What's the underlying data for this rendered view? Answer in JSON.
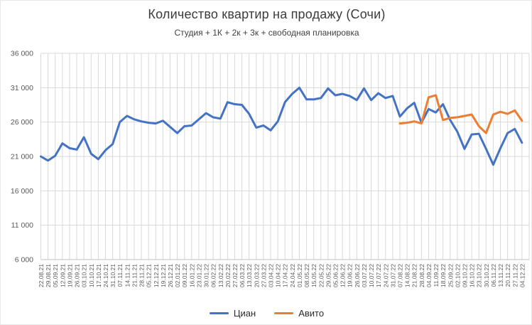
{
  "chart": {
    "title": "Количество квартир на продажу (Сочи)",
    "subtitle": "Студия + 1К + 2к + 3к + свободная планировка"
  },
  "chart_data": {
    "type": "line",
    "title": "Количество квартир на продажу (Сочи)",
    "subtitle": "Студия + 1К + 2к + 3к + свободная планировка",
    "categories": [
      "22.08.21",
      "29.08.21",
      "05.09.21",
      "12.09.21",
      "19.09.21",
      "26.09.21",
      "03.10.21",
      "10.10.21",
      "17.10.21",
      "24.10.21",
      "31.10.21",
      "07.11.21",
      "14.11.21",
      "21.11.21",
      "28.11.21",
      "05.12.21",
      "12.12.21",
      "19.12.21",
      "26.12.21",
      "02.01.22",
      "09.01.22",
      "16.01.22",
      "23.01.22",
      "30.01.22",
      "06.02.22",
      "13.02.22",
      "20.02.22",
      "27.02.22",
      "06.03.22",
      "13.03.22",
      "20.03.22",
      "27.03.22",
      "03.04.22",
      "10.04.22",
      "17.04.22",
      "24.04.22",
      "01.05.22",
      "08.05.22",
      "15.05.22",
      "22.05.22",
      "29.05.22",
      "05.06.22",
      "12.06.22",
      "19.06.22",
      "26.06.22",
      "03.07.22",
      "10.07.22",
      "17.07.22",
      "24.07.22",
      "31.07.22",
      "07.08.22",
      "14.08.22",
      "21.08.22",
      "28.08.22",
      "04.09.22",
      "11.09.22",
      "18.09.22",
      "25.09.22",
      "02.10.22",
      "09.10.22",
      "16.10.22",
      "23.10.22",
      "30.10.22",
      "06.11.22",
      "13.11.22",
      "20.11.22",
      "27.11.22",
      "04.12.22"
    ],
    "series": [
      {
        "name": "Циан",
        "color": "#4472C4",
        "start_index": 0,
        "values": [
          21000,
          20400,
          21100,
          22900,
          22200,
          22000,
          23800,
          21400,
          20600,
          21900,
          22800,
          26000,
          26900,
          26400,
          26100,
          25900,
          25800,
          26200,
          25300,
          24400,
          25400,
          25500,
          26400,
          27300,
          26700,
          26500,
          28900,
          28600,
          28500,
          27200,
          25200,
          25500,
          24800,
          26100,
          28900,
          30100,
          31000,
          29300,
          29300,
          29500,
          30900,
          29900,
          30100,
          29800,
          29200,
          30900,
          29200,
          30200,
          29500,
          29800,
          26800,
          28000,
          28800,
          25900,
          27900,
          27400,
          28600,
          26300,
          24600,
          22100,
          24200,
          24300,
          22100,
          19800,
          22200,
          24400,
          25000,
          23000
        ]
      },
      {
        "name": "Авито",
        "color": "#ED7D31",
        "start_index": 50,
        "values": [
          25800,
          25900,
          26100,
          25800,
          29600,
          29900,
          26300,
          26600,
          26700,
          26900,
          27100,
          25400,
          24400,
          27100,
          27500,
          27200,
          27700,
          26200
        ]
      }
    ],
    "ylim": [
      6000,
      36000
    ],
    "ytick_step": 5000,
    "ytick_labels": [
      "6 000",
      "11 000",
      "16 000",
      "21 000",
      "26 000",
      "31 000",
      "36 000"
    ],
    "xlabel": "",
    "ylabel": "",
    "grid": true,
    "legend_position": "bottom",
    "colors": {
      "gridline": "#D9D9D9",
      "axis_line": "#BFBFBF",
      "axis_text": "#595959",
      "title_text": "#3b3b3b"
    }
  }
}
